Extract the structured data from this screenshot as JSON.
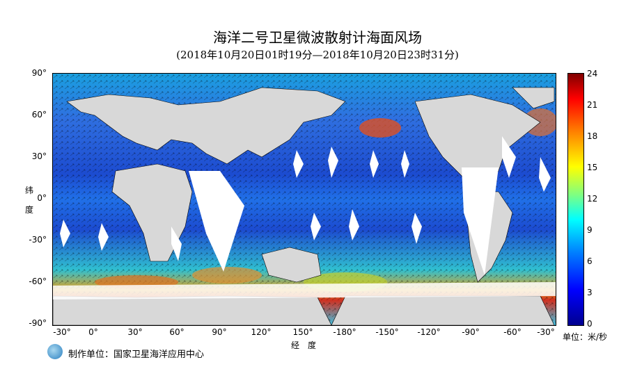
{
  "header": {
    "title": "海洋二号卫星微波散射计海面风场",
    "subtitle": "(2018年10月20日01时19分—2018年10月20日23时31分)"
  },
  "axes": {
    "y_ticks": [
      "90°",
      "60°",
      "30°",
      "0°",
      "-30°",
      "-60°",
      "-90°"
    ],
    "x_ticks": [
      "-30°",
      "0°",
      "30°",
      "60°",
      "90°",
      "120°",
      "150°",
      "-180°",
      "-150°",
      "-120°",
      "-90°",
      "-60°",
      "-30°"
    ],
    "y_title": [
      "纬",
      "度"
    ],
    "x_title": "经　度"
  },
  "colorbar": {
    "labels": [
      "24",
      "21",
      "18",
      "15",
      "12",
      "9",
      "6",
      "3",
      "0"
    ],
    "unit": "单位：米/秒",
    "range": [
      0,
      24
    ]
  },
  "footer": {
    "organization": "制作单位：国家卫星海洋应用中心"
  },
  "colors": {
    "ocean_base": "#1c5ac8",
    "land": "#d8d8d8",
    "gap": "#ffffff"
  }
}
